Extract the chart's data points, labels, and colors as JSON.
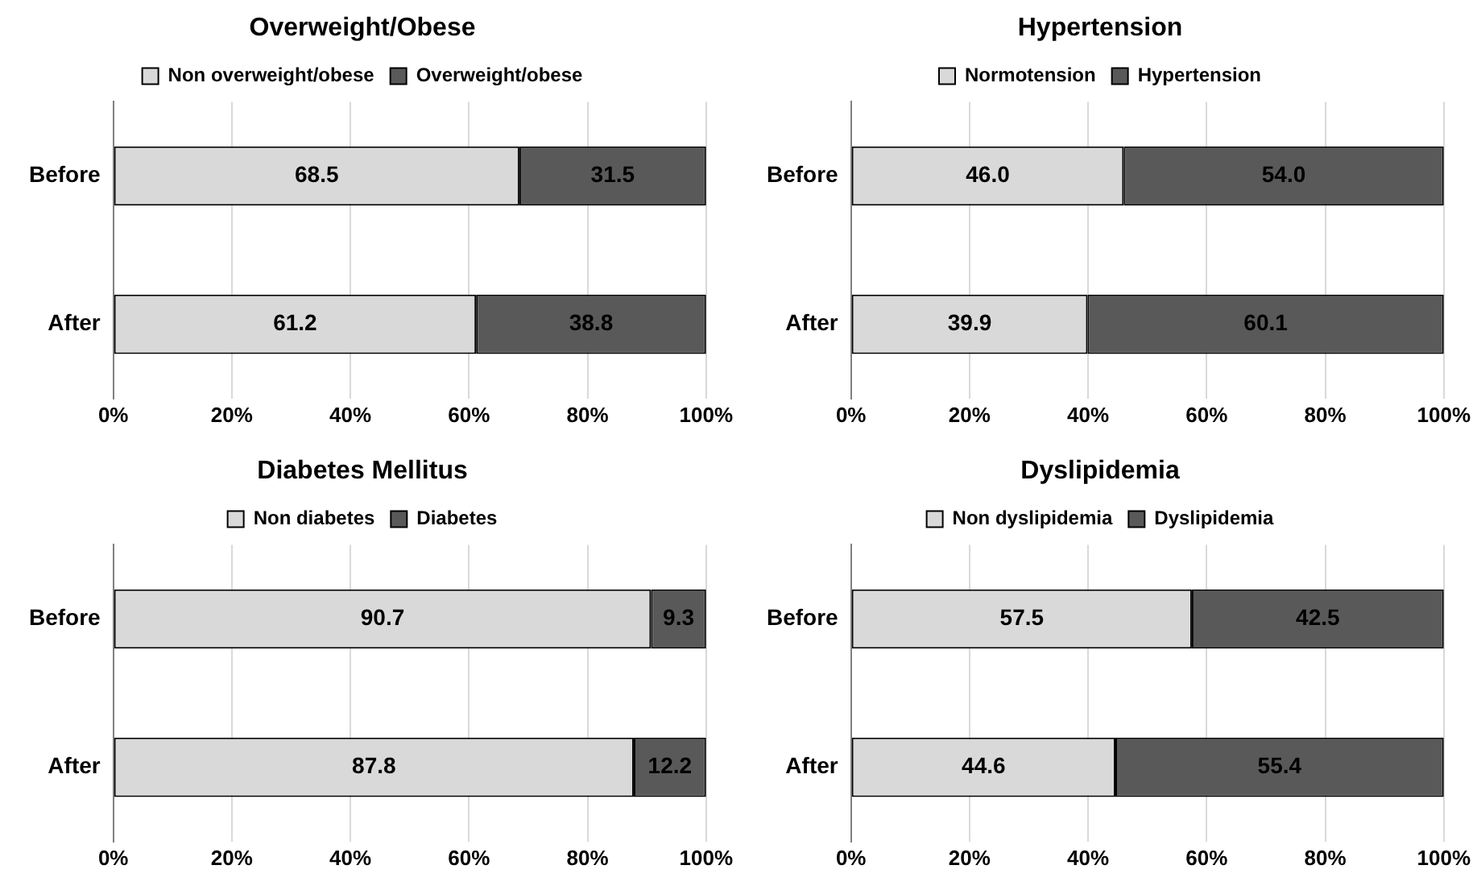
{
  "chart_data": [
    {
      "type": "bar",
      "orientation": "horizontal",
      "stacked": true,
      "title": "Overweight/Obese",
      "categories": [
        "Before",
        "After"
      ],
      "series": [
        {
          "name": "Non overweight/obese",
          "color": "#d9d9d9",
          "values": [
            68.5,
            61.2
          ],
          "value_labels": [
            "68.5",
            "61.2"
          ]
        },
        {
          "name": "Overweight/obese",
          "color": "#595959",
          "values": [
            31.5,
            38.8
          ],
          "value_labels": [
            "31.5",
            "38.8"
          ]
        }
      ],
      "xlim": [
        0,
        100
      ],
      "xticks": [
        {
          "value": 0,
          "label": "0%"
        },
        {
          "value": 20,
          "label": "20%"
        },
        {
          "value": 40,
          "label": "40%"
        },
        {
          "value": 60,
          "label": "60%"
        },
        {
          "value": 80,
          "label": "80%"
        },
        {
          "value": 100,
          "label": "100%"
        }
      ],
      "grid": "x",
      "legend": "top"
    },
    {
      "type": "bar",
      "orientation": "horizontal",
      "stacked": true,
      "title": "Hypertension",
      "categories": [
        "Before",
        "After"
      ],
      "series": [
        {
          "name": "Normotension",
          "color": "#d9d9d9",
          "values": [
            46,
            39.9
          ],
          "value_labels": [
            "46.0",
            "39.9"
          ]
        },
        {
          "name": "Hypertension",
          "color": "#595959",
          "values": [
            54,
            60.1
          ],
          "value_labels": [
            "54.0",
            "60.1"
          ]
        }
      ],
      "xlim": [
        0,
        100
      ],
      "xticks": [
        {
          "value": 0,
          "label": "0%"
        },
        {
          "value": 20,
          "label": "20%"
        },
        {
          "value": 40,
          "label": "40%"
        },
        {
          "value": 60,
          "label": "60%"
        },
        {
          "value": 80,
          "label": "80%"
        },
        {
          "value": 100,
          "label": "100%"
        }
      ],
      "grid": "x",
      "legend": "top"
    },
    {
      "type": "bar",
      "orientation": "horizontal",
      "stacked": true,
      "title": "Diabetes Mellitus",
      "categories": [
        "Before",
        "After"
      ],
      "series": [
        {
          "name": "Non diabetes",
          "color": "#d9d9d9",
          "values": [
            90.7,
            87.8
          ],
          "value_labels": [
            "90.7",
            "87.8"
          ]
        },
        {
          "name": "Diabetes",
          "color": "#595959",
          "values": [
            9.3,
            12.2
          ],
          "value_labels": [
            "9.3",
            "12.2"
          ]
        }
      ],
      "xlim": [
        0,
        100
      ],
      "xticks": [
        {
          "value": 0,
          "label": "0%"
        },
        {
          "value": 20,
          "label": "20%"
        },
        {
          "value": 40,
          "label": "40%"
        },
        {
          "value": 60,
          "label": "60%"
        },
        {
          "value": 80,
          "label": "80%"
        },
        {
          "value": 100,
          "label": "100%"
        }
      ],
      "grid": "x",
      "legend": "top"
    },
    {
      "type": "bar",
      "orientation": "horizontal",
      "stacked": true,
      "title": "Dyslipidemia",
      "categories": [
        "Before",
        "After"
      ],
      "series": [
        {
          "name": "Non dyslipidemia",
          "color": "#d9d9d9",
          "values": [
            57.5,
            44.6
          ],
          "value_labels": [
            "57.5",
            "44.6"
          ]
        },
        {
          "name": "Dyslipidemia",
          "color": "#595959",
          "values": [
            42.5,
            55.4
          ],
          "value_labels": [
            "42.5",
            "55.4"
          ]
        }
      ],
      "xlim": [
        0,
        100
      ],
      "xticks": [
        {
          "value": 0,
          "label": "0%"
        },
        {
          "value": 20,
          "label": "20%"
        },
        {
          "value": 40,
          "label": "40%"
        },
        {
          "value": 60,
          "label": "60%"
        },
        {
          "value": 80,
          "label": "80%"
        },
        {
          "value": 100,
          "label": "100%"
        }
      ],
      "grid": "x",
      "legend": "top"
    }
  ]
}
